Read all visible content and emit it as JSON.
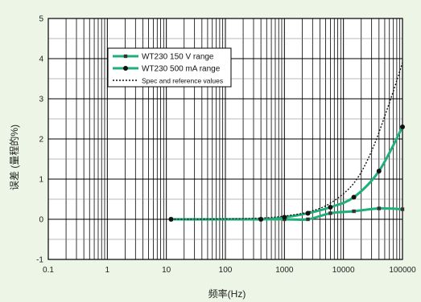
{
  "chart_data": {
    "type": "line",
    "title": "",
    "xlabel": "频率(Hz)",
    "ylabel": "误差 (量程的%)",
    "xscale": "log",
    "xlim": [
      0.1,
      100000
    ],
    "ylim": [
      -1,
      5
    ],
    "xticks": [
      0.1,
      1,
      10,
      100,
      1000,
      10000,
      100000
    ],
    "xtick_labels": [
      "0.1",
      "1",
      "10",
      "100",
      "1000",
      "10000",
      "100000"
    ],
    "yticks": [
      -1,
      0,
      1,
      2,
      3,
      4,
      5
    ],
    "ytick_labels": [
      "-1",
      "0",
      "1",
      "2",
      "3",
      "4",
      "5"
    ],
    "grid": true,
    "legend_position": "upper-left",
    "series": [
      {
        "name": "WT230 150 V range",
        "color": "#1fb07a",
        "marker": "square",
        "x": [
          12,
          400,
          1000,
          2500,
          6000,
          15000,
          40000,
          100000
        ],
        "y": [
          0,
          0,
          0,
          0,
          0.15,
          0.2,
          0.27,
          0.25
        ]
      },
      {
        "name": "WT230 500 mA range",
        "color": "#1fb07a",
        "marker": "circle",
        "x": [
          12,
          400,
          1000,
          2500,
          6000,
          15000,
          40000,
          100000
        ],
        "y": [
          0,
          0,
          0.05,
          0.15,
          0.3,
          0.55,
          1.2,
          2.3
        ]
      },
      {
        "name": "Spec and reference values",
        "color": "#111111",
        "style": "dotted",
        "x": [
          12,
          100,
          400,
          1000,
          2500,
          6000,
          15000,
          30000,
          60000,
          100000
        ],
        "y": [
          0,
          0.01,
          0.03,
          0.08,
          0.18,
          0.4,
          0.9,
          1.7,
          2.9,
          3.9
        ]
      }
    ]
  }
}
